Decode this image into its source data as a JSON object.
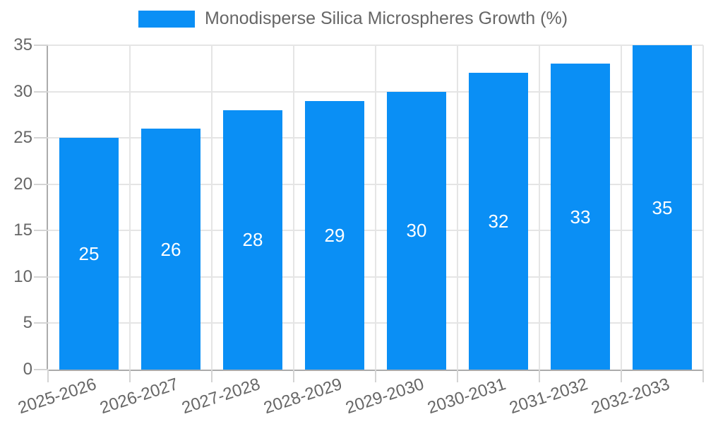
{
  "chart_data": {
    "type": "bar",
    "title": "Monodisperse Silica Microspheres Growth (%)",
    "categories": [
      "2025-2026",
      "2026-2027",
      "2027-2028",
      "2028-2029",
      "2029-2030",
      "2030-2031",
      "2031-2032",
      "2032-2033"
    ],
    "values": [
      25,
      26,
      28,
      29,
      30,
      32,
      33,
      35
    ],
    "xlabel": "",
    "ylabel": "",
    "ylim": [
      0,
      35
    ],
    "yticks": [
      0,
      5,
      10,
      15,
      20,
      25,
      30,
      35
    ],
    "grid": true,
    "legend_position": "top-center",
    "colors": {
      "bar": "#0a8ff5",
      "grid": "#e5e5e5",
      "tick": "#d4d4d4",
      "axis": "#ababab",
      "text": "#666666",
      "value_label": "#ffffff",
      "background": "#ffffff"
    }
  }
}
